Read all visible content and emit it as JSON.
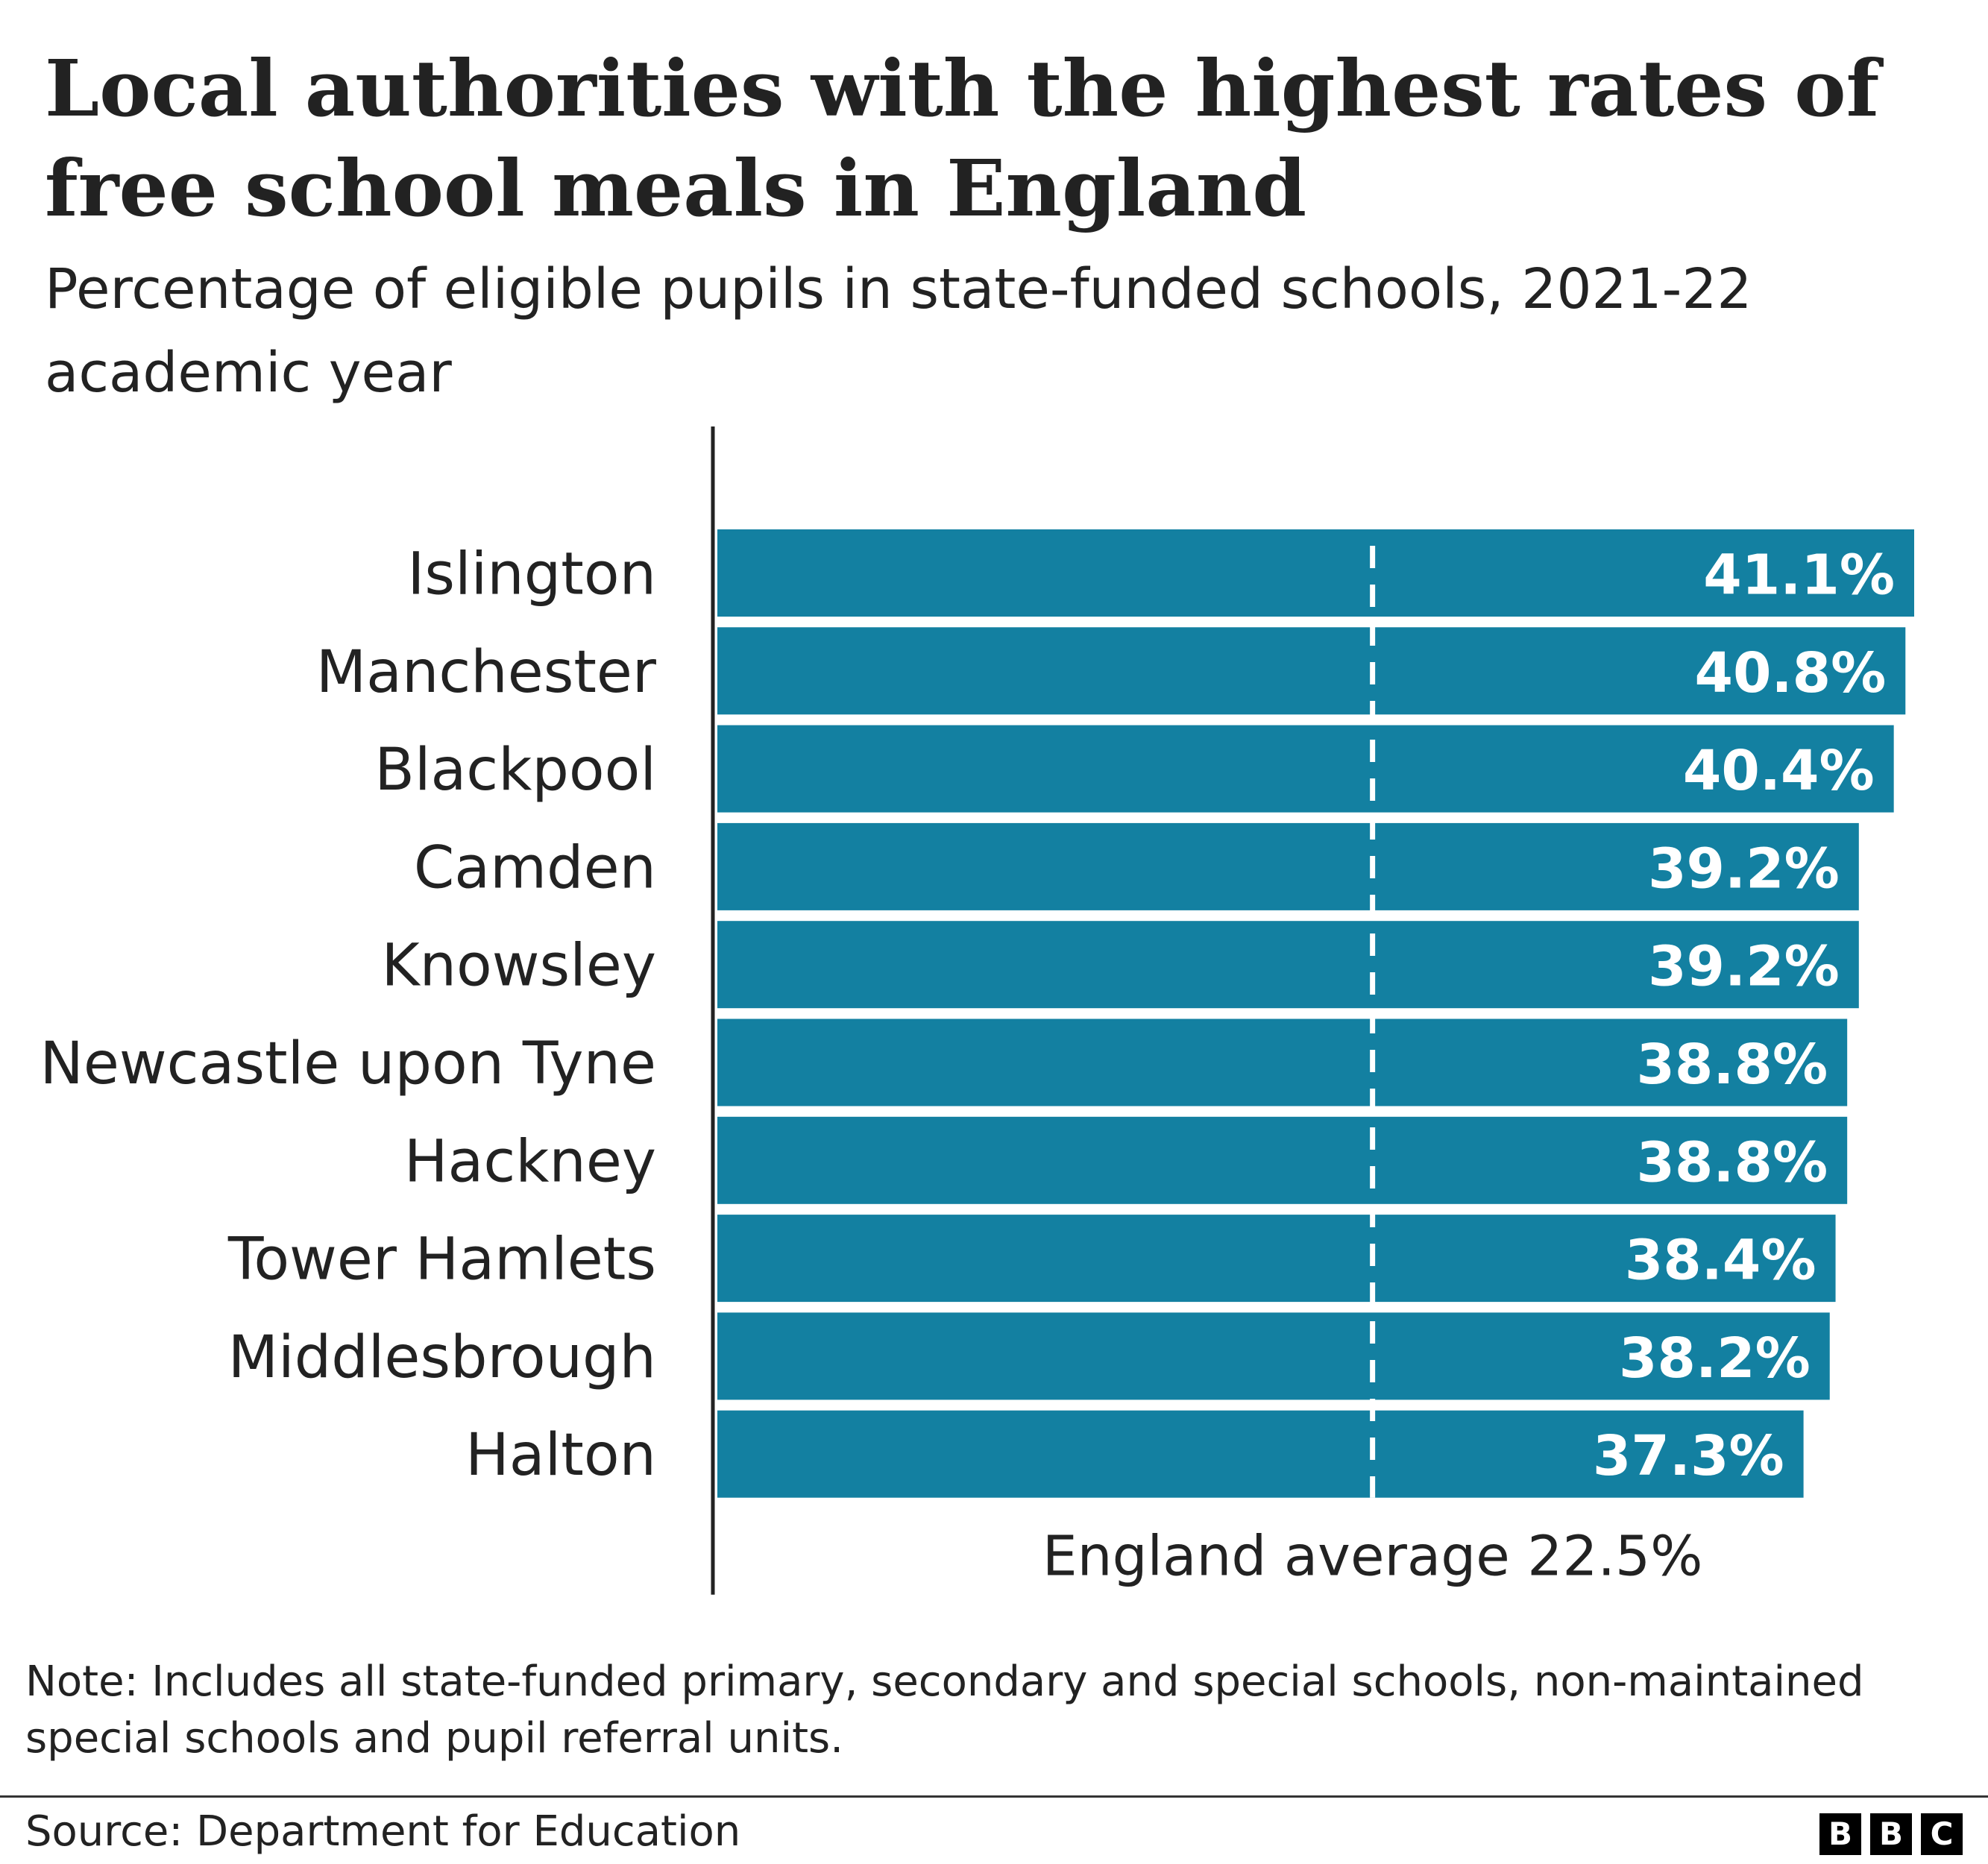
{
  "header": {
    "title": "Local authorities with the highest rates of free school meals in England",
    "subtitle": "Percentage of eligible pupils in state-funded schools, 2021-22 academic year"
  },
  "chart_data": {
    "type": "bar",
    "orientation": "horizontal",
    "categories": [
      "Islington",
      "Manchester",
      "Blackpool",
      "Camden",
      "Knowsley",
      "Newcastle upon Tyne",
      "Hackney",
      "Tower Hamlets",
      "Middlesbrough",
      "Halton"
    ],
    "values": [
      41.1,
      40.8,
      40.4,
      39.2,
      39.2,
      38.8,
      38.8,
      38.4,
      38.2,
      37.3
    ],
    "value_labels": [
      "41.1%",
      "40.8%",
      "40.4%",
      "39.2%",
      "39.2%",
      "38.8%",
      "38.8%",
      "38.4%",
      "38.2%",
      "37.3%"
    ],
    "xlim": [
      0,
      41.1
    ],
    "grid": false,
    "reference_line": {
      "value": 22.5,
      "label": "England average 22.5%",
      "style": "dashed"
    },
    "bar_color": "#1380A1",
    "label_color": "#ffffff"
  },
  "note": "Note: Includes all state-funded primary, secondary and special schools, non-maintained special schools and pupil referral units.",
  "footer": {
    "source": "Source: Department for Education",
    "logo_letters": [
      "B",
      "B",
      "C"
    ]
  }
}
